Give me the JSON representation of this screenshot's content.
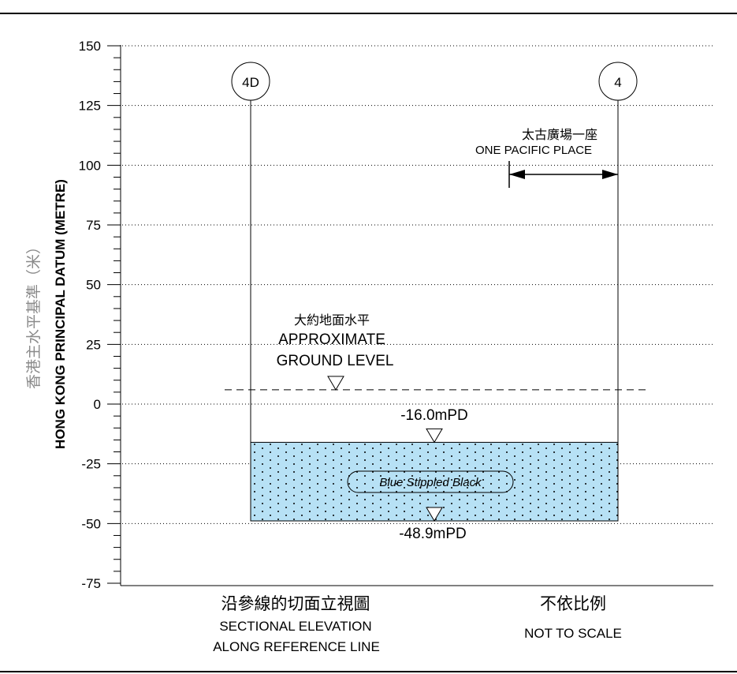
{
  "y_axis": {
    "title_en": "HONG KONG PRINCIPAL DATUM (METRE)",
    "title_zh": "香港主水平基準（米）",
    "ticks": [
      "150",
      "125",
      "100",
      "75",
      "50",
      "25",
      "0",
      "-25",
      "-50",
      "-75"
    ]
  },
  "grid_values": [
    150,
    125,
    100,
    75,
    50,
    25,
    0,
    -25,
    -50,
    -75
  ],
  "markers": {
    "left": "4D",
    "right": "4"
  },
  "building": {
    "zh": "太古廣場一座",
    "en": "ONE PACIFIC PLACE"
  },
  "ground": {
    "zh": "大約地面水平",
    "en_line1": "APPROXIMATE",
    "en_line2": "GROUND LEVEL",
    "level_mpd": 6
  },
  "structure": {
    "top_label": "-16.0mPD",
    "bottom_label": "-48.9mPD",
    "top_mpd": -16.0,
    "bottom_mpd": -48.9,
    "fill_label": "Blue Stippled Black",
    "fill_color": "#b7e1f5"
  },
  "footer": {
    "section_zh": "沿參線的切面立視圖",
    "section_en_line1": "SECTIONAL ELEVATION",
    "section_en_line2": "ALONG REFERENCE LINE",
    "scale_zh": "不依比例",
    "scale_en": "NOT TO SCALE"
  }
}
